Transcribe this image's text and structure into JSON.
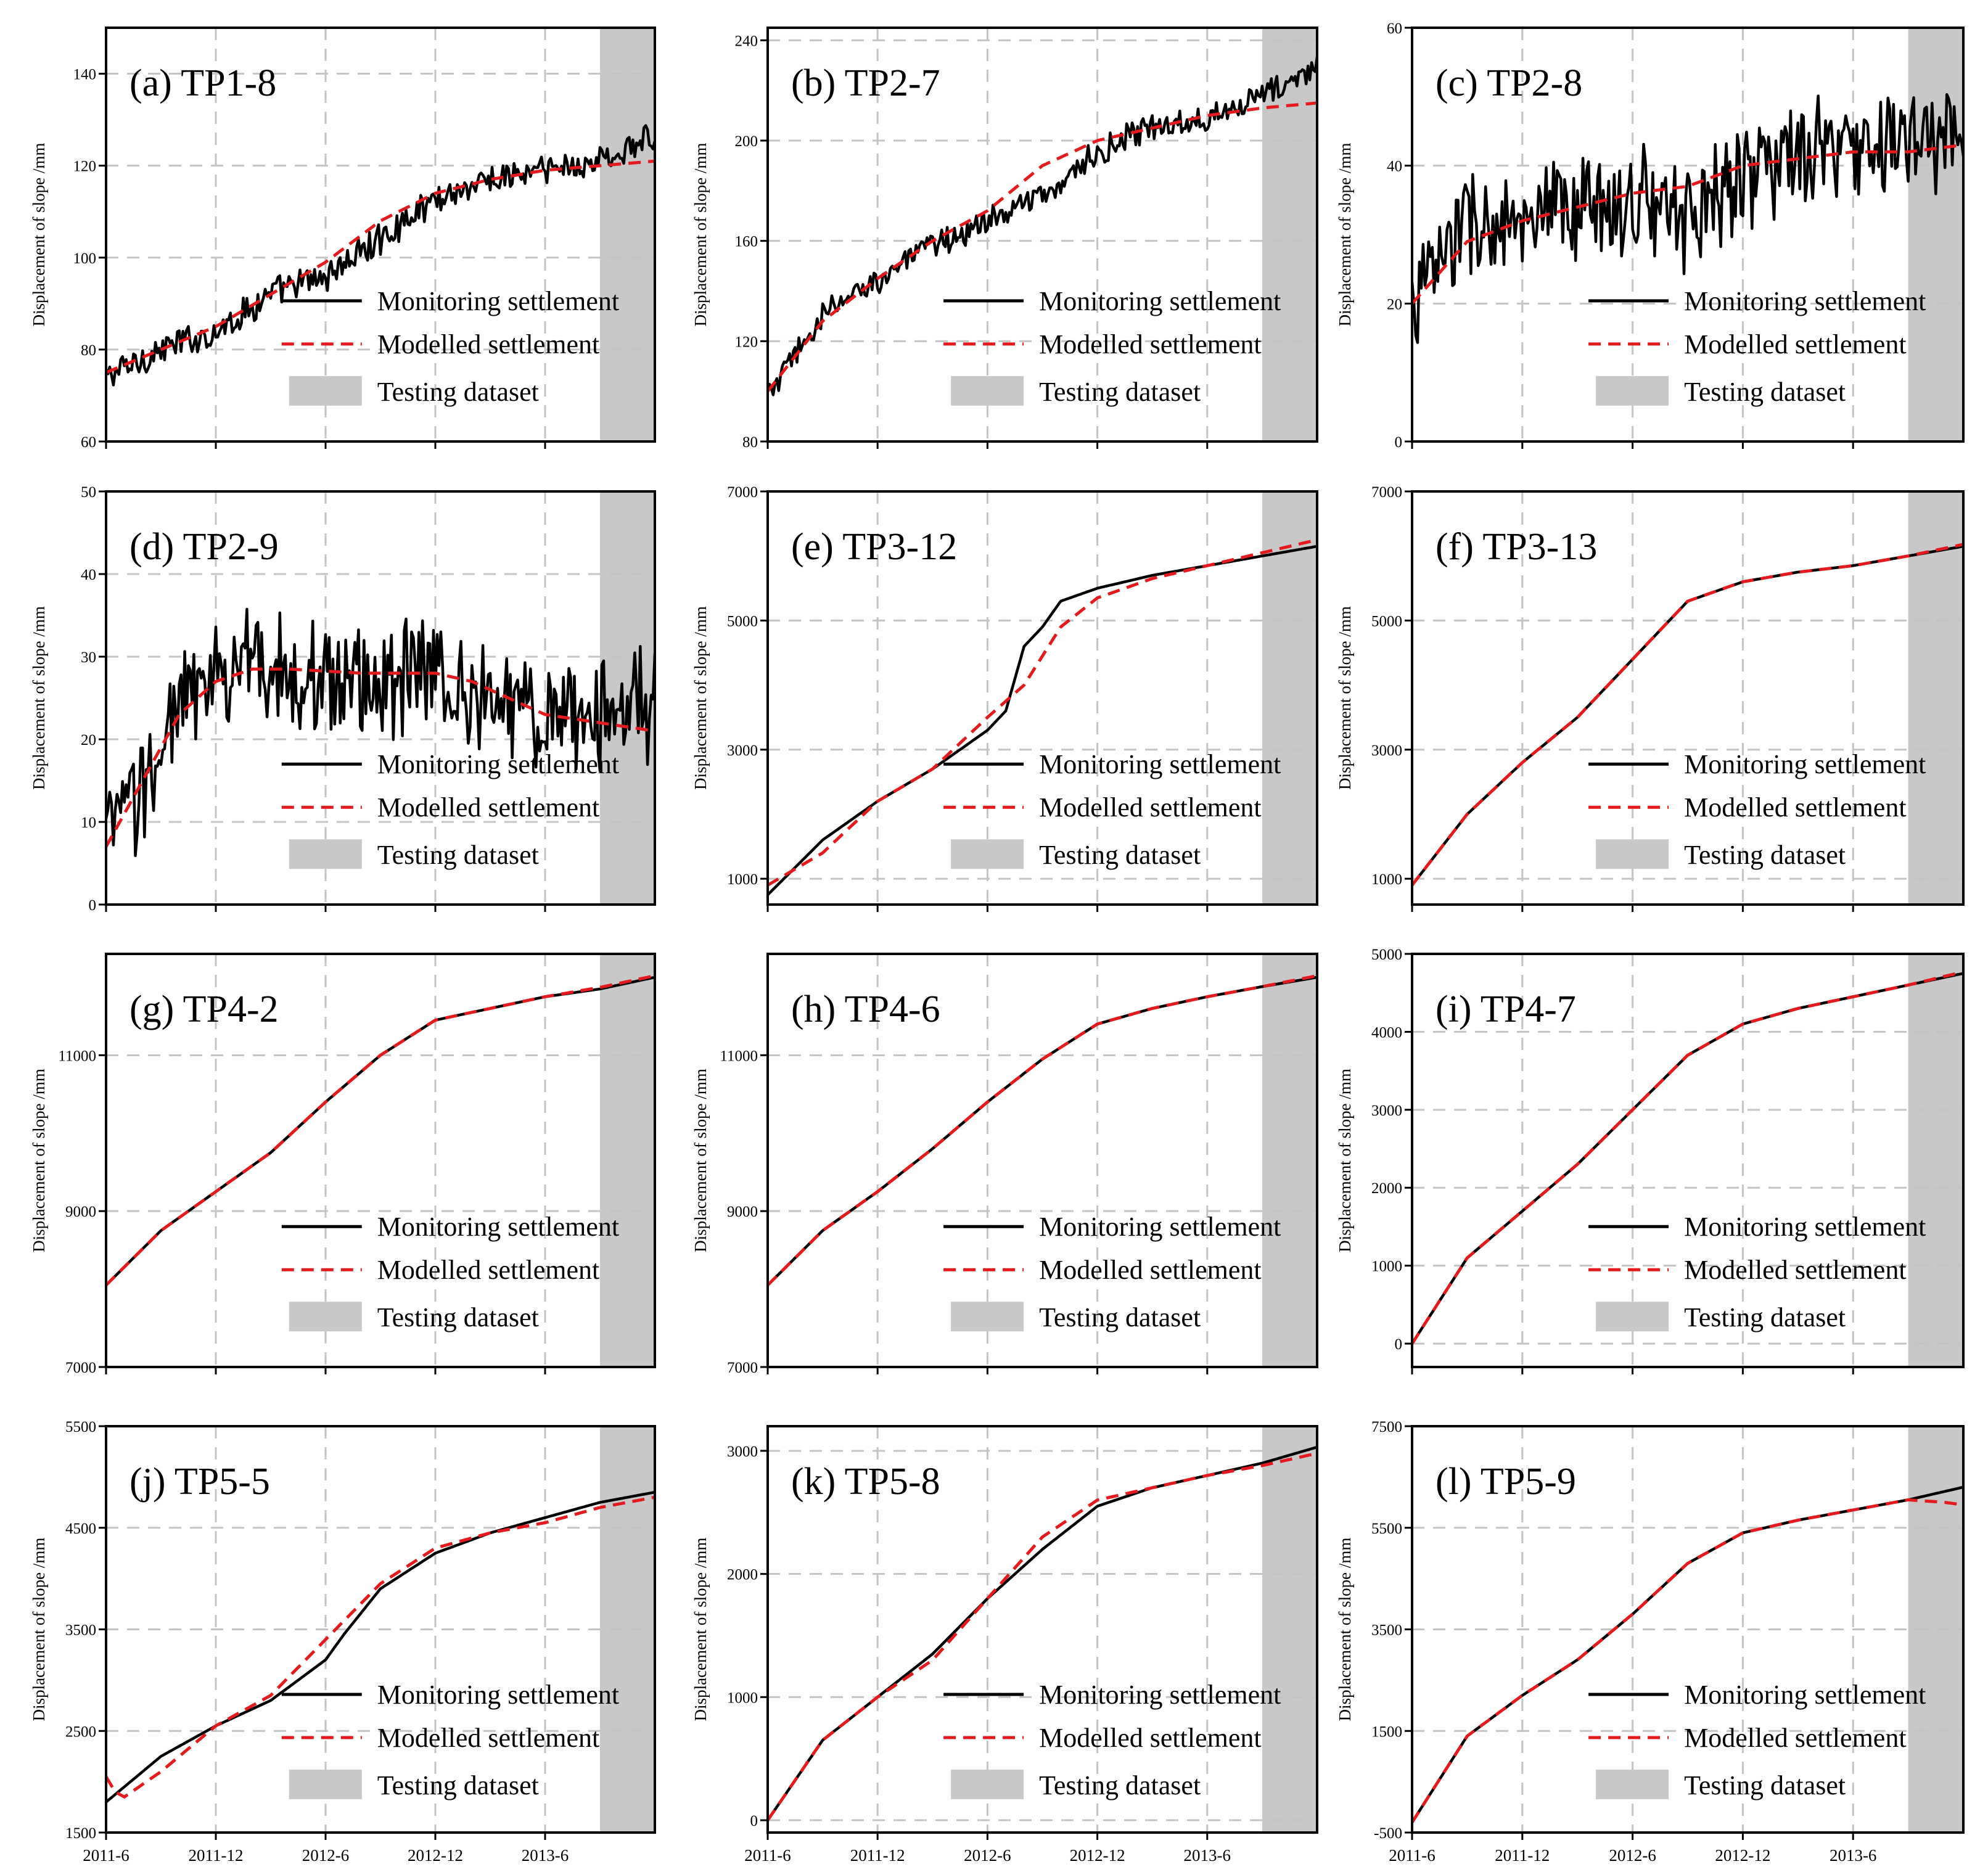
{
  "figure": {
    "legend": {
      "monitoring": "Monitoring settlement",
      "modelled": "Modelled settlement",
      "testing": "Testing dataset"
    },
    "ylabel": "Displacement of slope /mm",
    "x_tick_labels": [
      "2011-6",
      "2011-12",
      "2012-6",
      "2012-12",
      "2013-6"
    ],
    "colors": {
      "monitoring": "#000000",
      "modelled": "#e41a1c",
      "testing": "#c8c8c8",
      "grid": "#c4c4c4"
    }
  },
  "chart_data": [
    {
      "id": "a",
      "type": "line",
      "title": "(a)  TP1-8",
      "xlabel": "",
      "ylabel": "Displacement of slope /mm",
      "x_unit": "months since 2011-6",
      "xlim": [
        0,
        30
      ],
      "test_start": 27,
      "ylim": [
        60,
        150
      ],
      "yticks": [
        60,
        80,
        100,
        120,
        140
      ],
      "noise": 3,
      "model_offset": 0,
      "series": [
        {
          "name": "Monitoring settlement",
          "x": [
            0,
            3,
            6,
            9,
            12,
            15,
            18,
            21,
            24,
            27,
            30
          ],
          "values": [
            74,
            80,
            84,
            92,
            96,
            104,
            113,
            117,
            119,
            121,
            126
          ]
        },
        {
          "name": "Modelled settlement",
          "x": [
            0,
            3,
            6,
            9,
            12,
            15,
            18,
            21,
            24,
            27,
            30
          ],
          "values": [
            75,
            80,
            85,
            92,
            99,
            108,
            114,
            117,
            119,
            120,
            121
          ]
        }
      ]
    },
    {
      "id": "b",
      "type": "line",
      "title": "(b)  TP2-7",
      "xlabel": "",
      "ylabel": "Displacement of slope /mm",
      "x_unit": "months since 2011-6",
      "xlim": [
        0,
        30
      ],
      "test_start": 27,
      "ylim": [
        80,
        245
      ],
      "yticks": [
        80,
        120,
        160,
        200,
        240
      ],
      "noise": 5,
      "model_offset": 0,
      "series": [
        {
          "name": "Monitoring settlement",
          "x": [
            0,
            3,
            6,
            9,
            12,
            15,
            18,
            21,
            24,
            27,
            30
          ],
          "values": [
            98,
            130,
            145,
            158,
            168,
            178,
            195,
            205,
            210,
            218,
            228
          ]
        },
        {
          "name": "Modelled settlement",
          "x": [
            0,
            3,
            6,
            9,
            12,
            15,
            18,
            21,
            24,
            27,
            30
          ],
          "values": [
            100,
            128,
            145,
            160,
            172,
            190,
            200,
            205,
            210,
            213,
            215
          ]
        }
      ]
    },
    {
      "id": "c",
      "type": "line",
      "title": "(c)  TP2-8",
      "xlabel": "",
      "ylabel": "Displacement of slope /mm",
      "x_unit": "months since 2011-6",
      "xlim": [
        0,
        30
      ],
      "test_start": 27,
      "ylim": [
        0,
        60
      ],
      "yticks": [
        0,
        20,
        40,
        60
      ],
      "noise": 7,
      "model_offset": 0,
      "series": [
        {
          "name": "Monitoring settlement",
          "x": [
            0,
            3,
            6,
            9,
            12,
            15,
            18,
            21,
            24,
            27,
            30
          ],
          "values": [
            20,
            32,
            30,
            34,
            35,
            33,
            39,
            41,
            42,
            44,
            43
          ]
        },
        {
          "name": "Modelled settlement",
          "x": [
            0,
            3,
            6,
            9,
            12,
            15,
            18,
            21,
            24,
            27,
            30
          ],
          "values": [
            20,
            29,
            32,
            34,
            36,
            37,
            40,
            41,
            42,
            42,
            43
          ]
        }
      ]
    },
    {
      "id": "d",
      "type": "line",
      "title": "(d)  TP2-9",
      "xlabel": "",
      "ylabel": "Displacement of slope /mm",
      "x_unit": "months since 2011-6",
      "xlim": [
        0,
        30
      ],
      "test_start": 27,
      "ylim": [
        0,
        50
      ],
      "yticks": [
        0,
        10,
        20,
        30,
        40,
        50
      ],
      "noise": 6,
      "model_offset": 0,
      "series": [
        {
          "name": "Monitoring settlement",
          "x": [
            0,
            2,
            4,
            6,
            8,
            10,
            14,
            18,
            20,
            22,
            24,
            27,
            30
          ],
          "values": [
            8,
            14,
            24,
            27,
            30,
            28,
            27,
            28,
            26,
            24,
            23,
            23,
            24
          ]
        },
        {
          "name": "Modelled settlement",
          "x": [
            0,
            2,
            4,
            6,
            8,
            10,
            14,
            18,
            20,
            22,
            24,
            27,
            30
          ],
          "values": [
            7,
            15,
            23,
            27,
            28.5,
            28.5,
            28,
            28,
            27,
            25,
            23,
            22,
            21
          ]
        }
      ]
    },
    {
      "id": "e",
      "type": "line",
      "title": "(e)  TP3-12",
      "xlabel": "",
      "ylabel": "Displacement of slope /mm",
      "x_unit": "months since 2011-6",
      "xlim": [
        0,
        30
      ],
      "test_start": 27,
      "ylim": [
        600,
        7000
      ],
      "yticks": [
        1000,
        3000,
        5000,
        7000
      ],
      "noise": 0,
      "model_offset": 0,
      "series": [
        {
          "name": "Monitoring settlement",
          "x": [
            0,
            3,
            6,
            9,
            12,
            13,
            14,
            15,
            16,
            18,
            21,
            24,
            27,
            30
          ],
          "values": [
            750,
            1600,
            2200,
            2700,
            3300,
            3600,
            4600,
            4900,
            5300,
            5500,
            5700,
            5850,
            6000,
            6150
          ]
        },
        {
          "name": "Modelled settlement",
          "x": [
            0,
            3,
            6,
            9,
            12,
            14,
            16,
            18,
            21,
            24,
            27,
            30
          ],
          "values": [
            900,
            1400,
            2200,
            2700,
            3500,
            4000,
            4900,
            5350,
            5650,
            5850,
            6050,
            6250
          ]
        }
      ]
    },
    {
      "id": "f",
      "type": "line",
      "title": "(f)  TP3-13",
      "xlabel": "",
      "ylabel": "Displacement of slope /mm",
      "x_unit": "months since 2011-6",
      "xlim": [
        0,
        30
      ],
      "test_start": 27,
      "ylim": [
        600,
        7000
      ],
      "yticks": [
        1000,
        3000,
        5000,
        7000
      ],
      "noise": 0,
      "model_offset": 0,
      "series": [
        {
          "name": "Monitoring settlement",
          "x": [
            0,
            3,
            6,
            9,
            12,
            15,
            18,
            21,
            24,
            27,
            30
          ],
          "values": [
            900,
            2000,
            2800,
            3500,
            4400,
            5300,
            5600,
            5750,
            5850,
            6000,
            6150
          ]
        },
        {
          "name": "Modelled settlement",
          "x": [
            0,
            3,
            6,
            9,
            12,
            15,
            18,
            21,
            24,
            27,
            30
          ],
          "values": [
            900,
            2000,
            2800,
            3500,
            4400,
            5300,
            5600,
            5750,
            5850,
            6000,
            6180
          ]
        }
      ]
    },
    {
      "id": "g",
      "type": "line",
      "title": "(g)  TP4-2",
      "xlabel": "",
      "ylabel": "Displacement of slope /mm",
      "x_unit": "months since 2011-6",
      "xlim": [
        0,
        30
      ],
      "test_start": 27,
      "ylim": [
        7000,
        12300
      ],
      "yticks": [
        7000,
        9000,
        11000
      ],
      "noise": 0,
      "model_offset": 0,
      "series": [
        {
          "name": "Monitoring settlement",
          "x": [
            0,
            3,
            6,
            9,
            12,
            15,
            18,
            21,
            24,
            27,
            30
          ],
          "values": [
            8050,
            8750,
            9250,
            9750,
            10400,
            11000,
            11450,
            11600,
            11750,
            11850,
            12000
          ]
        },
        {
          "name": "Modelled settlement",
          "x": [
            0,
            3,
            6,
            9,
            12,
            15,
            18,
            21,
            24,
            27,
            30
          ],
          "values": [
            8050,
            8750,
            9250,
            9750,
            10400,
            11000,
            11450,
            11600,
            11750,
            11870,
            12020
          ]
        }
      ]
    },
    {
      "id": "h",
      "type": "line",
      "title": "(h)  TP4-6",
      "xlabel": "",
      "ylabel": "Displacement of slope /mm",
      "x_unit": "months since 2011-6",
      "xlim": [
        0,
        30
      ],
      "test_start": 27,
      "ylim": [
        7000,
        12300
      ],
      "yticks": [
        7000,
        9000,
        11000
      ],
      "noise": 0,
      "model_offset": 0,
      "series": [
        {
          "name": "Monitoring settlement",
          "x": [
            0,
            3,
            6,
            9,
            12,
            15,
            18,
            21,
            24,
            27,
            30
          ],
          "values": [
            8050,
            8750,
            9250,
            9800,
            10400,
            10950,
            11400,
            11600,
            11750,
            11880,
            12000
          ]
        },
        {
          "name": "Modelled settlement",
          "x": [
            0,
            3,
            6,
            9,
            12,
            15,
            18,
            21,
            24,
            27,
            30
          ],
          "values": [
            8050,
            8750,
            9250,
            9800,
            10400,
            10950,
            11400,
            11600,
            11750,
            11880,
            12020
          ]
        }
      ]
    },
    {
      "id": "i",
      "type": "line",
      "title": "(i)  TP4-7",
      "xlabel": "",
      "ylabel": "Displacement of slope /mm",
      "x_unit": "months since 2011-6",
      "xlim": [
        0,
        30
      ],
      "test_start": 27,
      "ylim": [
        -300,
        5000
      ],
      "yticks": [
        0,
        1000,
        2000,
        3000,
        4000,
        5000
      ],
      "noise": 0,
      "model_offset": 0,
      "series": [
        {
          "name": "Monitoring settlement",
          "x": [
            0,
            3,
            6,
            9,
            12,
            15,
            18,
            21,
            24,
            27,
            30
          ],
          "values": [
            0,
            1100,
            1700,
            2300,
            3000,
            3700,
            4100,
            4300,
            4450,
            4600,
            4750
          ]
        },
        {
          "name": "Modelled settlement",
          "x": [
            0,
            3,
            6,
            9,
            12,
            15,
            18,
            21,
            24,
            27,
            30
          ],
          "values": [
            0,
            1100,
            1700,
            2300,
            3000,
            3700,
            4100,
            4300,
            4450,
            4600,
            4770
          ]
        }
      ]
    },
    {
      "id": "j",
      "type": "line",
      "title": "(j)  TP5-5",
      "xlabel": "",
      "ylabel": "Displacement of slope /mm",
      "x_unit": "months since 2011-6",
      "xlim": [
        0,
        30
      ],
      "test_start": 27,
      "ylim": [
        1500,
        5500
      ],
      "yticks": [
        1500,
        2500,
        3500,
        4500,
        5500
      ],
      "noise": 0,
      "model_offset": 0,
      "series": [
        {
          "name": "Monitoring settlement",
          "x": [
            0,
            3,
            6,
            9,
            12,
            13,
            15,
            18,
            21,
            24,
            27,
            30
          ],
          "values": [
            1800,
            2250,
            2550,
            2800,
            3200,
            3450,
            3900,
            4250,
            4450,
            4600,
            4750,
            4850
          ]
        },
        {
          "name": "Modelled settlement",
          "x": [
            0,
            0.5,
            1,
            3,
            6,
            9,
            12,
            15,
            18,
            21,
            24,
            27,
            30
          ],
          "values": [
            2050,
            1900,
            1850,
            2100,
            2550,
            2850,
            3400,
            3950,
            4300,
            4450,
            4550,
            4700,
            4800
          ]
        }
      ]
    },
    {
      "id": "k",
      "type": "line",
      "title": "(k)  TP5-8",
      "xlabel": "",
      "ylabel": "Displacement of slope /mm",
      "x_unit": "months since 2011-6",
      "xlim": [
        0,
        30
      ],
      "test_start": 27,
      "ylim": [
        -100,
        3200
      ],
      "yticks": [
        0,
        1000,
        2000,
        3000
      ],
      "noise": 0,
      "model_offset": 0,
      "series": [
        {
          "name": "Monitoring settlement",
          "x": [
            0,
            3,
            6,
            9,
            12,
            15,
            18,
            21,
            24,
            27,
            30
          ],
          "values": [
            0,
            650,
            1000,
            1350,
            1800,
            2200,
            2550,
            2700,
            2800,
            2900,
            3030
          ]
        },
        {
          "name": "Modelled settlement",
          "x": [
            0,
            3,
            6,
            9,
            12,
            15,
            18,
            21,
            24,
            27,
            30
          ],
          "values": [
            0,
            650,
            1000,
            1300,
            1800,
            2300,
            2600,
            2700,
            2800,
            2880,
            2980
          ]
        }
      ]
    },
    {
      "id": "l",
      "type": "line",
      "title": "(l)  TP5-9",
      "xlabel": "",
      "ylabel": "Displacement of slope /mm",
      "x_unit": "months since 2011-6",
      "xlim": [
        0,
        30
      ],
      "test_start": 27,
      "ylim": [
        -500,
        7500
      ],
      "yticks": [
        -500,
        1500,
        3500,
        5500,
        7500
      ],
      "noise": 0,
      "model_offset": 0,
      "series": [
        {
          "name": "Monitoring settlement",
          "x": [
            0,
            3,
            6,
            9,
            12,
            15,
            18,
            21,
            24,
            27,
            30
          ],
          "values": [
            -300,
            1400,
            2200,
            2900,
            3800,
            4800,
            5400,
            5650,
            5850,
            6050,
            6300
          ]
        },
        {
          "name": "Modelled settlement",
          "x": [
            0,
            3,
            6,
            9,
            12,
            15,
            18,
            21,
            24,
            27,
            29,
            30
          ],
          "values": [
            -300,
            1400,
            2200,
            2900,
            3800,
            4800,
            5400,
            5650,
            5850,
            6050,
            6000,
            5950
          ]
        }
      ]
    }
  ]
}
